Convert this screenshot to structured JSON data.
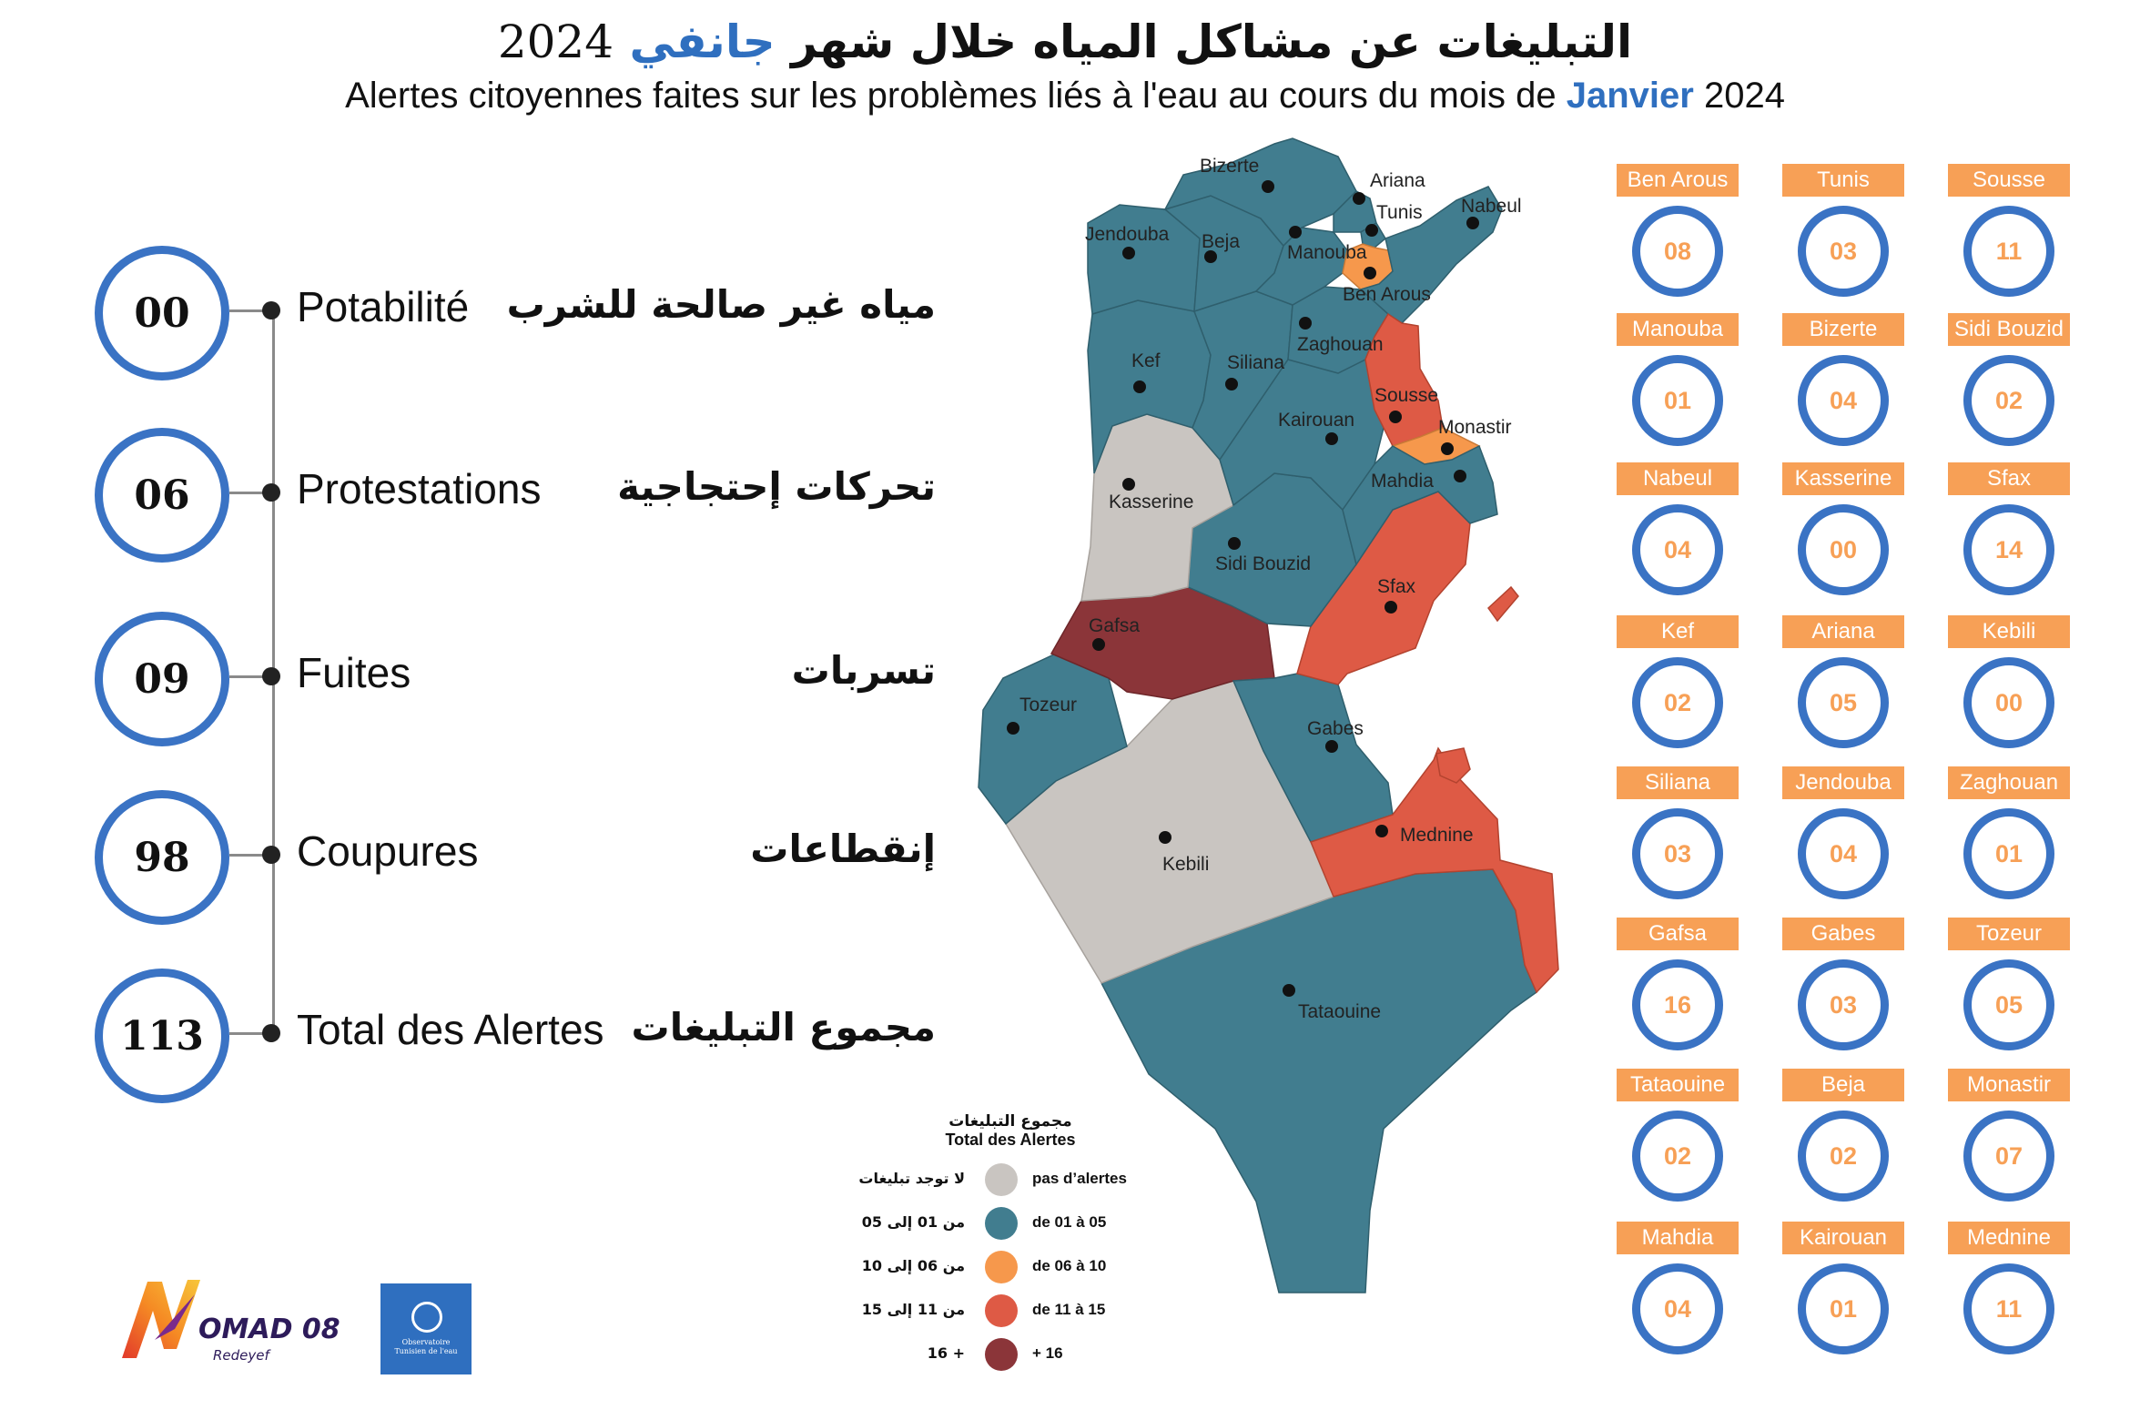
{
  "header": {
    "title_ar_main": "التبليغات عن مشاكل المياه خلال شهر",
    "title_ar_month": "جانفي",
    "title_ar_year": "2024",
    "title_fr_main": "Alertes citoyennes faites sur les problèmes liés à l'eau au cours du mois de",
    "title_fr_month": "Janvier",
    "title_fr_year": "2024"
  },
  "stats": [
    {
      "value": "00",
      "label_fr": "Potabilité",
      "label_ar": "مياه غير صالحة للشرب"
    },
    {
      "value": "06",
      "label_fr": "Protestations",
      "label_ar": "تحركات إحتجاجية"
    },
    {
      "value": "09",
      "label_fr": "Fuites",
      "label_ar": "تسربات"
    },
    {
      "value": "98",
      "label_fr": "Coupures",
      "label_ar": "إنقطاعات"
    },
    {
      "value": "113",
      "label_fr": "Total des Alertes",
      "label_ar": "مجموع التبليغات"
    }
  ],
  "legend": {
    "title_ar": "مجموع التبليغات",
    "title_fr": "Total des Alertes",
    "items": [
      {
        "ar": "لا توجد تبليغات",
        "fr": "pas d’alertes",
        "color": "#c9c5c1"
      },
      {
        "ar": "من 01 إلى 05",
        "fr": "de 01 à 05",
        "color": "#417d8f"
      },
      {
        "ar": "من 06 إلى 10",
        "fr": "de 06 à 10",
        "color": "#f6984c"
      },
      {
        "ar": "من 11 إلى 15",
        "fr": "de 11 à 15",
        "color": "#de5a45"
      },
      {
        "ar": "+ 16",
        "fr": "+ 16",
        "color": "#8b3539"
      }
    ]
  },
  "map_labels": {
    "bizerte": "Bizerte",
    "ariana": "Ariana",
    "tunis": "Tunis",
    "nabeul": "Nabeul",
    "jendouba": "Jendouba",
    "beja": "Beja",
    "manouba": "Manouba",
    "ben_arous": "Ben Arous",
    "zaghouan": "Zaghouan",
    "kef": "Kef",
    "siliana": "Siliana",
    "sousse": "Sousse",
    "monastir": "Monastir",
    "kairouan": "Kairouan",
    "mahdia": "Mahdia",
    "kasserine": "Kasserine",
    "sidi_bouzid": "Sidi Bouzid",
    "sfax": "Sfax",
    "gafsa": "Gafsa",
    "tozeur": "Tozeur",
    "gabes": "Gabes",
    "kebili": "Kebili",
    "mednine": "Mednine",
    "tataouine": "Tataouine"
  },
  "governorates": [
    {
      "name": "Ben Arous",
      "count": "08"
    },
    {
      "name": "Tunis",
      "count": "03"
    },
    {
      "name": "Sousse",
      "count": "11"
    },
    {
      "name": "Manouba",
      "count": "01"
    },
    {
      "name": "Bizerte",
      "count": "04"
    },
    {
      "name": "Sidi Bouzid",
      "count": "02"
    },
    {
      "name": "Nabeul",
      "count": "04"
    },
    {
      "name": "Kasserine",
      "count": "00"
    },
    {
      "name": "Sfax",
      "count": "14"
    },
    {
      "name": "Kef",
      "count": "02"
    },
    {
      "name": "Ariana",
      "count": "05"
    },
    {
      "name": "Kebili",
      "count": "00"
    },
    {
      "name": "Siliana",
      "count": "03"
    },
    {
      "name": "Jendouba",
      "count": "04"
    },
    {
      "name": "Zaghouan",
      "count": "01"
    },
    {
      "name": "Gafsa",
      "count": "16"
    },
    {
      "name": "Gabes",
      "count": "03"
    },
    {
      "name": "Tozeur",
      "count": "05"
    },
    {
      "name": "Tataouine",
      "count": "02"
    },
    {
      "name": "Beja",
      "count": "02"
    },
    {
      "name": "Monastir",
      "count": "07"
    },
    {
      "name": "Mahdia",
      "count": "04"
    },
    {
      "name": "Kairouan",
      "count": "01"
    },
    {
      "name": "Mednine",
      "count": "11"
    }
  ],
  "logos": {
    "nomad_name": "OMAD 08",
    "nomad_sub": "Redeyef",
    "observatoire_line1": "Observatoire",
    "observatoire_line2": "Tunisien de l'eau"
  },
  "colors": {
    "accent_blue": "#3a73c4",
    "tag_orange": "#f7a056",
    "map_teal": "#417d8f",
    "map_gray": "#c9c5c1",
    "map_orange": "#f6984c",
    "map_red": "#de5a45",
    "map_dark_red": "#8b3539"
  }
}
